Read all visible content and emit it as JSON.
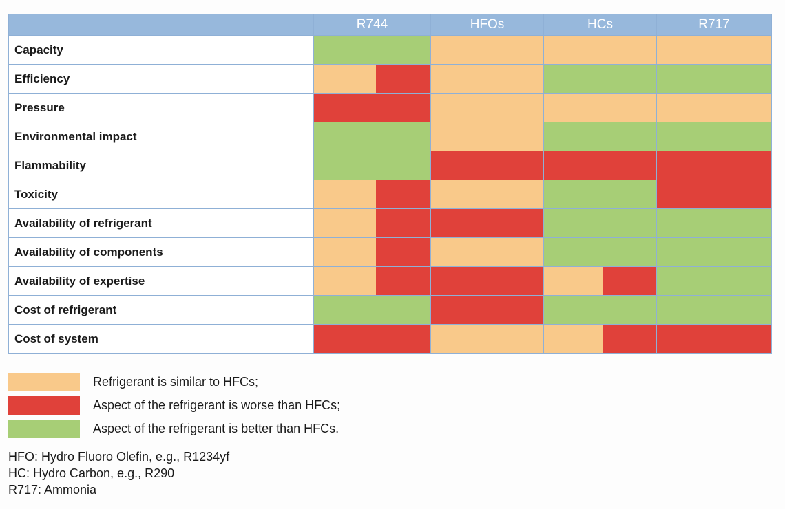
{
  "colors": {
    "similar": "#f9c98a",
    "worse": "#e0413a",
    "better": "#a7ce76",
    "header": "#97b8dc"
  },
  "chart_data": {
    "type": "table",
    "columns": [
      "R744",
      "HFOs",
      "HCs",
      "R717"
    ],
    "rows": [
      {
        "label": "Capacity",
        "cells": [
          [
            "better"
          ],
          [
            "similar"
          ],
          [
            "similar"
          ],
          [
            "similar"
          ]
        ]
      },
      {
        "label": "Efficiency",
        "cells": [
          [
            "similar",
            "worse"
          ],
          [
            "similar"
          ],
          [
            "better"
          ],
          [
            "better"
          ]
        ]
      },
      {
        "label": "Pressure",
        "cells": [
          [
            "worse"
          ],
          [
            "similar"
          ],
          [
            "similar"
          ],
          [
            "similar"
          ]
        ]
      },
      {
        "label": "Environmental impact",
        "cells": [
          [
            "better"
          ],
          [
            "similar"
          ],
          [
            "better"
          ],
          [
            "better"
          ]
        ]
      },
      {
        "label": "Flammability",
        "cells": [
          [
            "better"
          ],
          [
            "worse"
          ],
          [
            "worse"
          ],
          [
            "worse"
          ]
        ]
      },
      {
        "label": "Toxicity",
        "cells": [
          [
            "similar",
            "worse"
          ],
          [
            "similar"
          ],
          [
            "better"
          ],
          [
            "worse"
          ]
        ]
      },
      {
        "label": "Availability of refrigerant",
        "cells": [
          [
            "similar",
            "worse"
          ],
          [
            "worse"
          ],
          [
            "better"
          ],
          [
            "better"
          ]
        ]
      },
      {
        "label": "Availability of components",
        "cells": [
          [
            "similar",
            "worse"
          ],
          [
            "similar"
          ],
          [
            "better"
          ],
          [
            "better"
          ]
        ]
      },
      {
        "label": "Availability of expertise",
        "cells": [
          [
            "similar",
            "worse"
          ],
          [
            "worse"
          ],
          [
            "similar",
            "worse"
          ],
          [
            "better"
          ]
        ]
      },
      {
        "label": "Cost of refrigerant",
        "cells": [
          [
            "better"
          ],
          [
            "worse"
          ],
          [
            "better"
          ],
          [
            "better"
          ]
        ]
      },
      {
        "label": "Cost of system",
        "cells": [
          [
            "worse"
          ],
          [
            "similar"
          ],
          [
            "similar",
            "worse"
          ],
          [
            "worse"
          ]
        ]
      }
    ],
    "legend": [
      {
        "key": "similar",
        "label": "Refrigerant is similar to HFCs;"
      },
      {
        "key": "worse",
        "label": "Aspect of the refrigerant is worse than HFCs;"
      },
      {
        "key": "better",
        "label": "Aspect of the refrigerant is better than HFCs."
      }
    ],
    "notes": [
      "HFO: Hydro Fluoro Olefin, e.g., R1234yf",
      "HC: Hydro Carbon, e.g., R290",
      "R717: Ammonia"
    ]
  }
}
